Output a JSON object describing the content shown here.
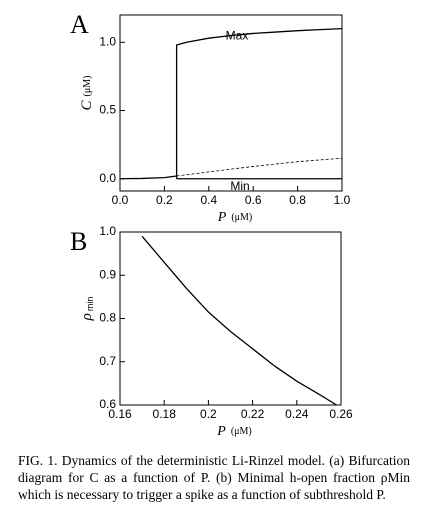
{
  "chart_data": [
    {
      "type": "line",
      "panel": "A",
      "y_label": "C",
      "y_unit": "(μM)",
      "x_label": "P",
      "x_unit": "(μM)",
      "xlim": [
        0,
        1
      ],
      "xticks": [
        {
          "value": 0,
          "label": "0.0"
        },
        0.2,
        0.4,
        0.6,
        0.8,
        {
          "value": 1,
          "label": "1.0"
        }
      ],
      "ylim": [
        -0.09,
        1.2
      ],
      "yticks": [
        {
          "value": 0,
          "label": "0.0"
        },
        0.5,
        {
          "value": 1,
          "label": "1.0"
        }
      ],
      "series": [
        {
          "name": "Max",
          "color": "#000000",
          "x": [
            0.255,
            0.255,
            0.3,
            0.4,
            0.5,
            0.6,
            0.7,
            0.8,
            0.9,
            1.0
          ],
          "values": [
            0.0,
            0.98,
            1.0,
            1.03,
            1.05,
            1.065,
            1.075,
            1.085,
            1.093,
            1.1
          ]
        },
        {
          "name": "Min",
          "color": "#000000",
          "x": [
            0.255,
            1.0
          ],
          "values": [
            0.0,
            0.0
          ]
        },
        {
          "color": "#000000",
          "x": [
            0,
            0.1,
            0.2,
            0.255
          ],
          "values": [
            0,
            0.002,
            0.008,
            0.02
          ]
        },
        {
          "color": "#000000",
          "dash": true,
          "x": [
            0.255,
            0.4,
            0.6,
            0.8,
            1.0
          ],
          "values": [
            0.02,
            0.05,
            0.09,
            0.125,
            0.15
          ]
        }
      ]
    },
    {
      "type": "line",
      "panel": "B",
      "y_label": "ρ",
      "y_sub": "min",
      "x_label": "P",
      "x_unit": "(μM)",
      "xlim": [
        0.16,
        0.26
      ],
      "xticks": [
        0.16,
        0.18,
        0.2,
        0.22,
        0.24,
        0.26
      ],
      "ylim": [
        0.6,
        1.0
      ],
      "yticks": [
        0.6,
        0.7,
        0.8,
        0.9,
        {
          "value": 1,
          "label": "1.0"
        }
      ],
      "series": [
        {
          "color": "#000000",
          "x": [
            0.17,
            0.18,
            0.19,
            0.2,
            0.21,
            0.22,
            0.23,
            0.24,
            0.25,
            0.258
          ],
          "values": [
            0.99,
            0.93,
            0.87,
            0.815,
            0.77,
            0.73,
            0.69,
            0.655,
            0.625,
            0.6
          ]
        }
      ]
    }
  ],
  "caption": "FIG. 1. Dynamics of the deterministic Li-Rinzel model. (a) Bifurcation diagram for C as a function of P. (b) Minimal h-open fraction ρMin which is necessary to trigger a spike as a function of subthreshold P."
}
